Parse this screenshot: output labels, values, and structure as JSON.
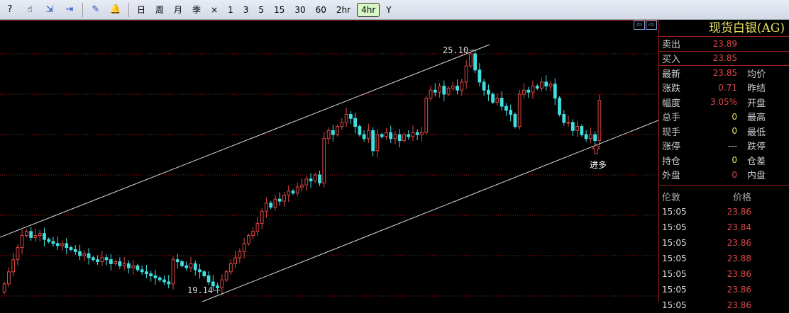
{
  "toolbar": {
    "icons": [
      "help-icon",
      "hand-icon",
      "export-icon",
      "import-icon",
      "draw-icon",
      "alert-bell-icon"
    ],
    "periods": [
      "日",
      "周",
      "月",
      "季",
      "×",
      "1",
      "3",
      "5",
      "15",
      "30",
      "60",
      "2hr",
      "4hr",
      "Y"
    ],
    "active_period": "4hr"
  },
  "panel": {
    "title": "现货白银(AG)",
    "sell": {
      "label": "卖出",
      "value": "23.89"
    },
    "buy": {
      "label": "买入",
      "value": "23.85"
    },
    "rows": [
      {
        "label": "最新",
        "value": "23.85",
        "label2": "均价",
        "color": "red"
      },
      {
        "label": "涨跌",
        "value": "0.71",
        "label2": "昨结",
        "color": "red"
      },
      {
        "label": "幅度",
        "value": "3.05%",
        "label2": "开盘",
        "color": "red"
      },
      {
        "label": "总手",
        "value": "0",
        "label2": "最高",
        "color": "yel"
      },
      {
        "label": "现手",
        "value": "0",
        "label2": "最低",
        "color": "yel"
      },
      {
        "label": "涨停",
        "value": "---",
        "label2": "跌停",
        "color": "grey"
      },
      {
        "label": "持仓",
        "value": "0",
        "label2": "仓差",
        "color": "yel"
      },
      {
        "label": "外盘",
        "value": "0",
        "label2": "内盘",
        "color": "red"
      }
    ],
    "trades_header": {
      "time": "伦敦",
      "price": "价格"
    },
    "trades": [
      {
        "time": "15:05",
        "price": "23.86"
      },
      {
        "time": "15:05",
        "price": "23.84"
      },
      {
        "time": "15:05",
        "price": "23.86"
      },
      {
        "time": "15:05",
        "price": "23.88"
      },
      {
        "time": "15:05",
        "price": "23.86"
      },
      {
        "time": "15:05",
        "price": "23.86"
      },
      {
        "time": "15:05",
        "price": "23.86"
      }
    ]
  },
  "chart_data": {
    "type": "candlestick",
    "grid": true,
    "ylim": [
      18.8,
      25.9
    ],
    "colors": {
      "up": "#e04848",
      "down": "#40e0e0",
      "grid": "#a02020",
      "channel": "#ffffff"
    },
    "closes": [
      19.3,
      19.6,
      19.9,
      20.2,
      20.5,
      20.6,
      20.45,
      20.5,
      20.55,
      20.4,
      20.35,
      20.3,
      20.25,
      20.3,
      20.2,
      20.15,
      20.1,
      20.0,
      20.05,
      19.95,
      19.9,
      19.85,
      19.95,
      19.9,
      19.8,
      19.85,
      19.75,
      19.8,
      19.7,
      19.75,
      19.65,
      19.6,
      19.55,
      19.5,
      19.45,
      19.4,
      19.35,
      19.3,
      19.9,
      19.85,
      19.75,
      19.7,
      19.8,
      19.65,
      19.6,
      19.5,
      19.35,
      19.25,
      19.2,
      19.4,
      19.6,
      19.8,
      19.95,
      20.1,
      20.3,
      20.5,
      20.6,
      20.8,
      21.1,
      21.3,
      21.2,
      21.4,
      21.35,
      21.5,
      21.6,
      21.55,
      21.7,
      21.75,
      21.9,
      21.85,
      22.0,
      21.8,
      22.9,
      23.1,
      23.0,
      23.2,
      23.3,
      23.5,
      23.4,
      23.2,
      23.0,
      22.9,
      23.1,
      22.6,
      23.0,
      22.95,
      23.05,
      22.9,
      23.0,
      22.85,
      23.0,
      22.95,
      23.05,
      23.0,
      23.05,
      23.9,
      24.1,
      24.05,
      24.2,
      24.0,
      24.15,
      24.2,
      24.1,
      24.3,
      24.7,
      25.0,
      24.6,
      24.3,
      24.1,
      24.0,
      23.8,
      23.9,
      23.7,
      23.6,
      23.5,
      23.2,
      24.0,
      24.1,
      24.05,
      24.2,
      24.15,
      24.3,
      24.2,
      24.25,
      23.9,
      23.5,
      23.3,
      23.3,
      23.1,
      23.2,
      23.0,
      22.9,
      23.0,
      22.85,
      23.85
    ],
    "annotations": {
      "high": "25.10",
      "low": "19.14",
      "signal": "进多"
    }
  }
}
